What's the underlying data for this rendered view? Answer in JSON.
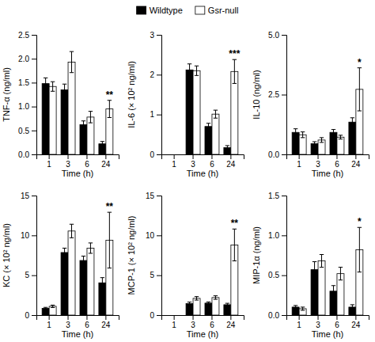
{
  "chart_data": [
    {
      "type": "bar",
      "xlabel": "Time (h)",
      "ylabel": "TNF-α (ng/ml)",
      "categories": [
        "1",
        "3",
        "6",
        "24"
      ],
      "series": [
        {
          "name": "Wildtype",
          "color": "#000000",
          "values": [
            1.48,
            1.35,
            0.62,
            0.22
          ],
          "errors": [
            0.12,
            0.12,
            0.08,
            0.05
          ]
        },
        {
          "name": "Gsr-null",
          "color": "#ffffff",
          "values": [
            1.42,
            1.93,
            0.78,
            0.95
          ],
          "errors": [
            0.1,
            0.22,
            0.12,
            0.18
          ]
        }
      ],
      "ylim": [
        0,
        2.5
      ],
      "yticks": [
        {
          "value": 0,
          "label": "0.0"
        },
        0.5,
        {
          "value": 1,
          "label": "1.0"
        },
        1.5,
        {
          "value": 2,
          "label": "2.0"
        },
        2.5
      ],
      "annotations": [
        {
          "text": "**",
          "x": "24"
        }
      ]
    },
    {
      "type": "bar",
      "xlabel": "Time (h)",
      "ylabel": "IL-6 (× 10² ng/ml)",
      "categories": [
        "1",
        "3",
        "6",
        "24"
      ],
      "series": [
        {
          "name": "Wildtype",
          "color": "#000000",
          "values": [
            null,
            2.12,
            0.7,
            0.17
          ],
          "errors": [
            null,
            0.15,
            0.08,
            0.05
          ]
        },
        {
          "name": "Gsr-null",
          "color": "#ffffff",
          "values": [
            null,
            2.1,
            1.01,
            2.08
          ],
          "errors": [
            null,
            0.12,
            0.1,
            0.3
          ]
        }
      ],
      "ylim": [
        0,
        3.0
      ],
      "yticks": [
        0,
        1,
        2,
        3
      ],
      "annotations": [
        {
          "text": "***",
          "x": "24"
        }
      ]
    },
    {
      "type": "bar",
      "xlabel": "Time (h)",
      "ylabel": "IL-10 (ng/ml)",
      "categories": [
        "1",
        "3",
        "6",
        "24"
      ],
      "series": [
        {
          "name": "Wildtype",
          "color": "#000000",
          "values": [
            0.92,
            0.45,
            0.92,
            1.35
          ],
          "errors": [
            0.15,
            0.08,
            0.12,
            0.18
          ]
        },
        {
          "name": "Gsr-null",
          "color": "#ffffff",
          "values": [
            0.82,
            0.6,
            0.72,
            2.72
          ],
          "errors": [
            0.12,
            0.1,
            0.08,
            0.9
          ]
        }
      ],
      "ylim": [
        0,
        5.0
      ],
      "yticks": [
        {
          "value": 0,
          "label": "0.0"
        },
        2.5,
        {
          "value": 5,
          "label": "5.0"
        }
      ],
      "annotations": [
        {
          "text": "*",
          "x": "24"
        }
      ]
    },
    {
      "type": "bar",
      "xlabel": "Time (h)",
      "ylabel": "KC (× 10² ng/ml)",
      "categories": [
        "1",
        "3",
        "6",
        "24"
      ],
      "series": [
        {
          "name": "Wildtype",
          "color": "#000000",
          "values": [
            0.85,
            7.85,
            6.85,
            4.05
          ],
          "errors": [
            0.12,
            0.55,
            0.55,
            0.65
          ]
        },
        {
          "name": "Gsr-null",
          "color": "#ffffff",
          "values": [
            1.1,
            10.55,
            8.4,
            9.4
          ],
          "errors": [
            0.15,
            0.85,
            0.65,
            3.5
          ]
        }
      ],
      "ylim": [
        0,
        15
      ],
      "yticks": [
        0,
        5,
        10,
        15
      ],
      "annotations": [
        {
          "text": "**",
          "x": "24"
        }
      ]
    },
    {
      "type": "bar",
      "xlabel": "Time (h)",
      "ylabel": "MCP-1 (× 10² ng/ml)",
      "categories": [
        "1",
        "3",
        "6",
        "24"
      ],
      "series": [
        {
          "name": "Wildtype",
          "color": "#000000",
          "values": [
            null,
            1.45,
            1.5,
            1.3
          ],
          "errors": [
            null,
            0.18,
            0.15,
            0.18
          ]
        },
        {
          "name": "Gsr-null",
          "color": "#ffffff",
          "values": [
            null,
            2.1,
            2.2,
            8.8
          ],
          "errors": [
            null,
            0.22,
            0.22,
            2.0
          ]
        }
      ],
      "ylim": [
        0,
        15
      ],
      "yticks": [
        0,
        5,
        10,
        15
      ],
      "annotations": [
        {
          "text": "**",
          "x": "24"
        }
      ]
    },
    {
      "type": "bar",
      "xlabel": "Time (h)",
      "ylabel": "MIP-1α (ng/ml)",
      "categories": [
        "1",
        "3",
        "6",
        "24"
      ],
      "series": [
        {
          "name": "Wildtype",
          "color": "#000000",
          "values": [
            0.1,
            0.57,
            0.3,
            0.1
          ],
          "errors": [
            0.02,
            0.1,
            0.07,
            0.03
          ]
        },
        {
          "name": "Gsr-null",
          "color": "#ffffff",
          "values": [
            0.08,
            0.68,
            0.52,
            0.82
          ],
          "errors": [
            0.02,
            0.08,
            0.08,
            0.28
          ]
        }
      ],
      "ylim": [
        0,
        1.5
      ],
      "yticks": [
        {
          "value": 0,
          "label": "0.0"
        },
        0.5,
        {
          "value": 1,
          "label": "1.0"
        },
        1.5
      ],
      "annotations": [
        {
          "text": "*",
          "x": "24"
        }
      ]
    }
  ]
}
